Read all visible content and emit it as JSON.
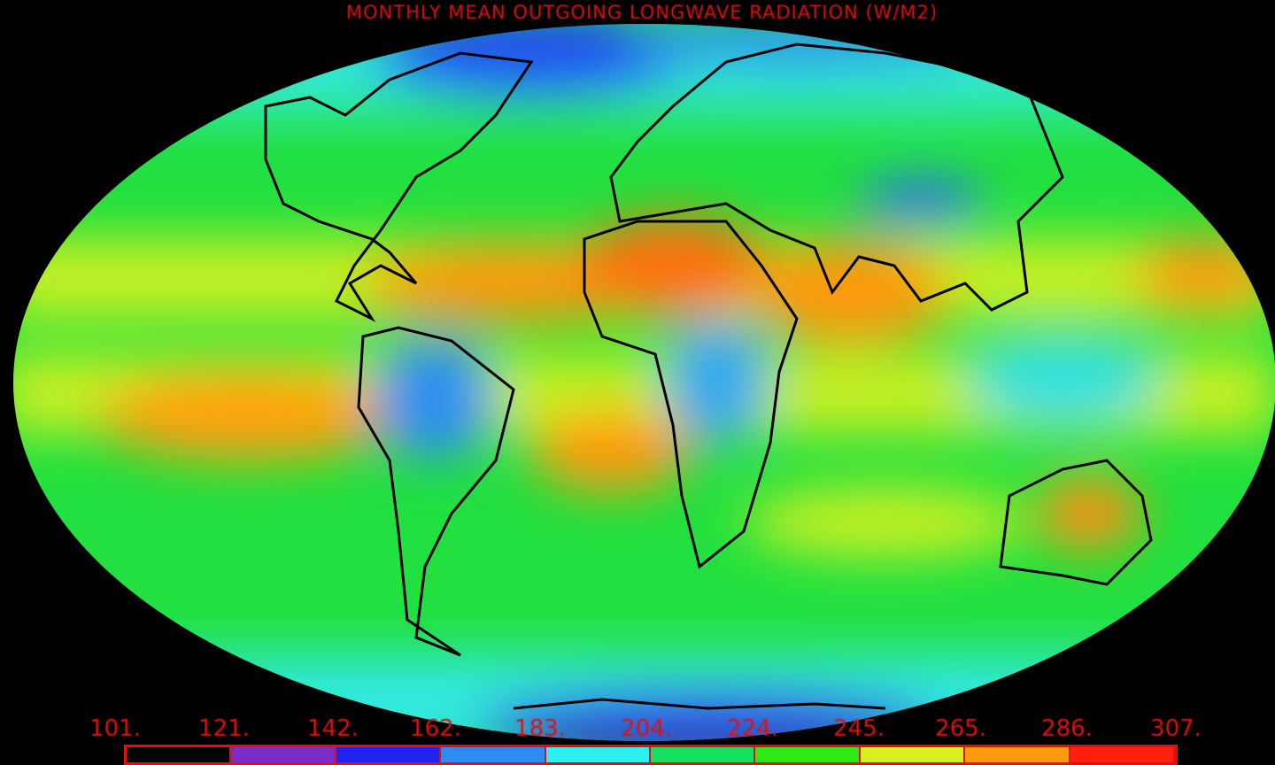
{
  "title": "MONTHLY MEAN OUTGOING LONGWAVE RADIATION (W/M2)",
  "colorbar": {
    "tick_labels": [
      "101.",
      "121.",
      "142.",
      "162.",
      "183.",
      "204.",
      "224.",
      "245.",
      "265.",
      "286.",
      "307."
    ],
    "colors": [
      "#050505",
      "#7a2cc8",
      "#2222f0",
      "#2e8cf0",
      "#2ef0f0",
      "#18e060",
      "#30e818",
      "#d8f020",
      "#ff9a10",
      "#ff2010"
    ]
  },
  "map": {
    "projection": "mollweide",
    "background": "#000000"
  }
}
